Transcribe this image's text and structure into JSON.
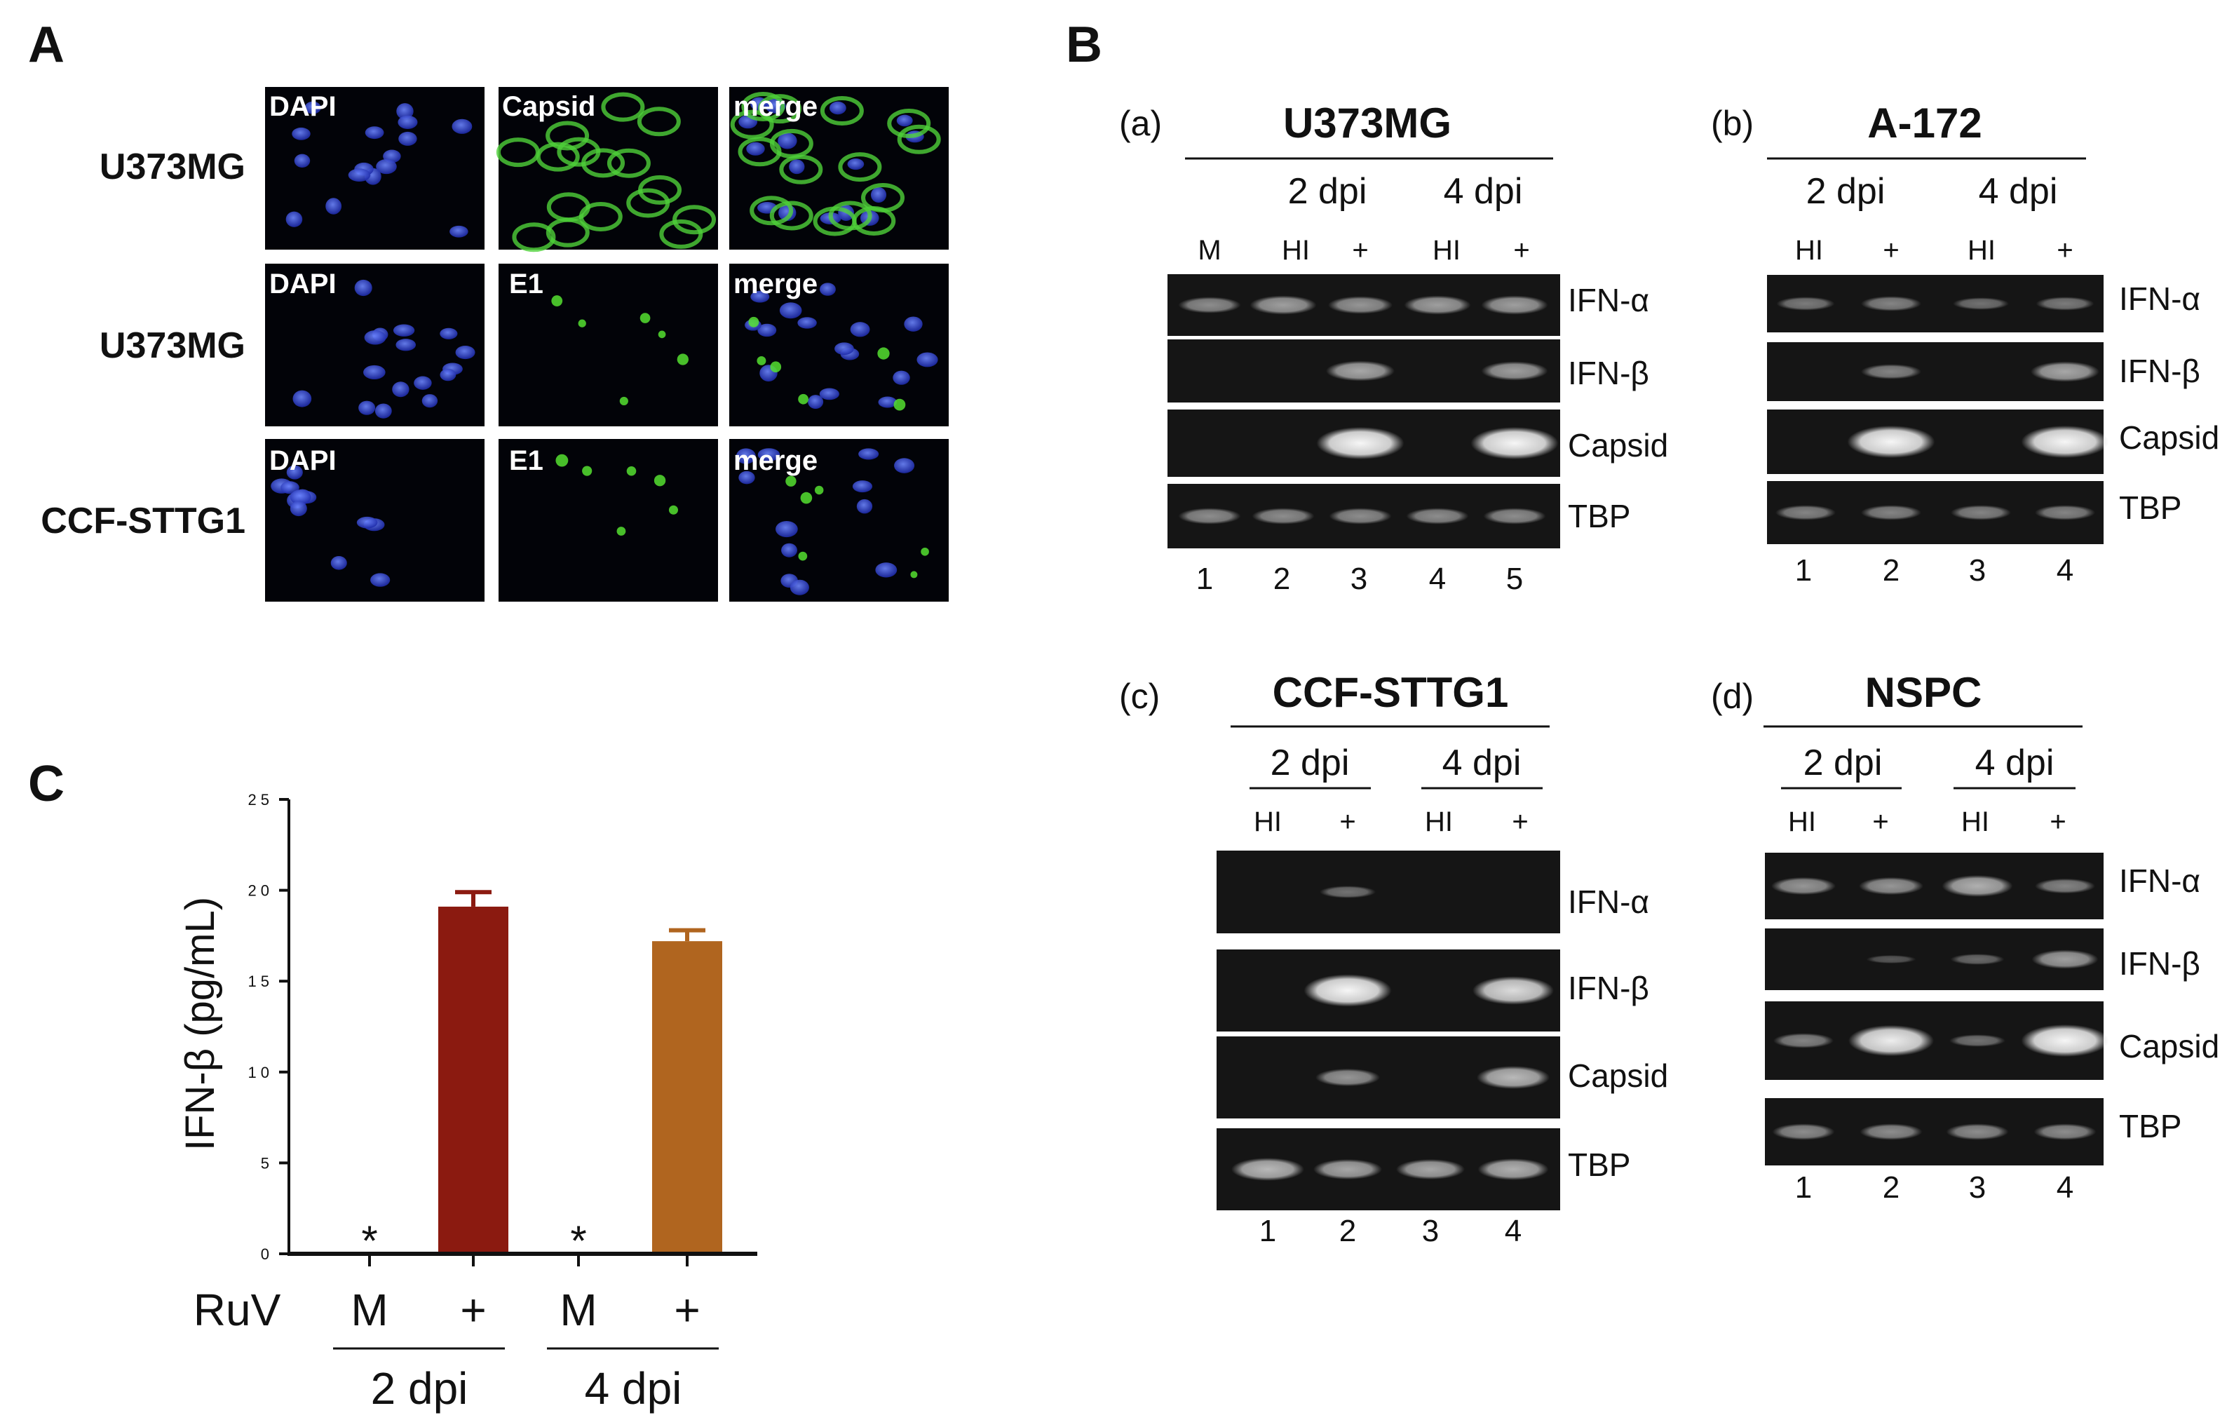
{
  "panel_a": {
    "letter": "A",
    "rows": [
      {
        "label": "U373MG",
        "channels": [
          "DAPI",
          "Capsid",
          "merge"
        ]
      },
      {
        "label": "U373MG",
        "channels": [
          "DAPI",
          "E1",
          "merge"
        ]
      },
      {
        "label": "CCF-STTG1",
        "channels": [
          "DAPI",
          "E1",
          "merge"
        ]
      }
    ]
  },
  "panel_b": {
    "letter": "B",
    "subpanels": [
      {
        "tag": "(a)",
        "title": "U373MG",
        "dpi": [
          "2 dpi",
          "4 dpi"
        ],
        "conditions": [
          "M",
          "HI",
          "+",
          "HI",
          "+"
        ],
        "genes": [
          "IFN-α",
          "IFN-β",
          "Capsid",
          "TBP"
        ],
        "lanes": [
          "1",
          "2",
          "3",
          "4",
          "5"
        ]
      },
      {
        "tag": "(b)",
        "title": "A-172",
        "dpi": [
          "2 dpi",
          "4 dpi"
        ],
        "conditions": [
          "HI",
          "+",
          "HI",
          "+"
        ],
        "genes": [
          "IFN-α",
          "IFN-β",
          "Capsid",
          "TBP"
        ],
        "lanes": [
          "1",
          "2",
          "3",
          "4"
        ]
      },
      {
        "tag": "(c)",
        "title": "CCF-STTG1",
        "dpi": [
          "2 dpi",
          "4 dpi"
        ],
        "conditions": [
          "HI",
          "+",
          "HI",
          "+"
        ],
        "genes": [
          "IFN-α",
          "IFN-β",
          "Capsid",
          "TBP"
        ],
        "lanes": [
          "1",
          "2",
          "3",
          "4"
        ]
      },
      {
        "tag": "(d)",
        "title": "NSPC",
        "dpi": [
          "2 dpi",
          "4 dpi"
        ],
        "conditions": [
          "HI",
          "+",
          "HI",
          "+"
        ],
        "genes": [
          "IFN-α",
          "IFN-β",
          "Capsid",
          "TBP"
        ],
        "lanes": [
          "1",
          "2",
          "3",
          "4"
        ]
      }
    ]
  },
  "panel_c": {
    "letter": "C",
    "row_label": "RuV",
    "conditions": [
      "M",
      "+",
      "M",
      "+"
    ],
    "groups": [
      "2 dpi",
      "4 dpi"
    ],
    "asterisk": "*"
  },
  "chart_data": {
    "type": "bar",
    "categories": [
      "M",
      "+",
      "M",
      "+"
    ],
    "values": [
      0,
      19.1,
      0,
      17.2
    ],
    "errors": [
      0,
      0.8,
      0,
      0.6
    ],
    "colors": [
      "#000000",
      "#8b1a10",
      "#000000",
      "#b0651f"
    ],
    "title": "",
    "xlabel": "",
    "ylabel": "IFN-β (pg/mL)",
    "ylim": [
      0,
      25
    ],
    "yticks": [
      "0",
      "5",
      "10",
      "15",
      "20",
      "25"
    ],
    "ytick_values": [
      0,
      5,
      10,
      15,
      20,
      25
    ]
  }
}
